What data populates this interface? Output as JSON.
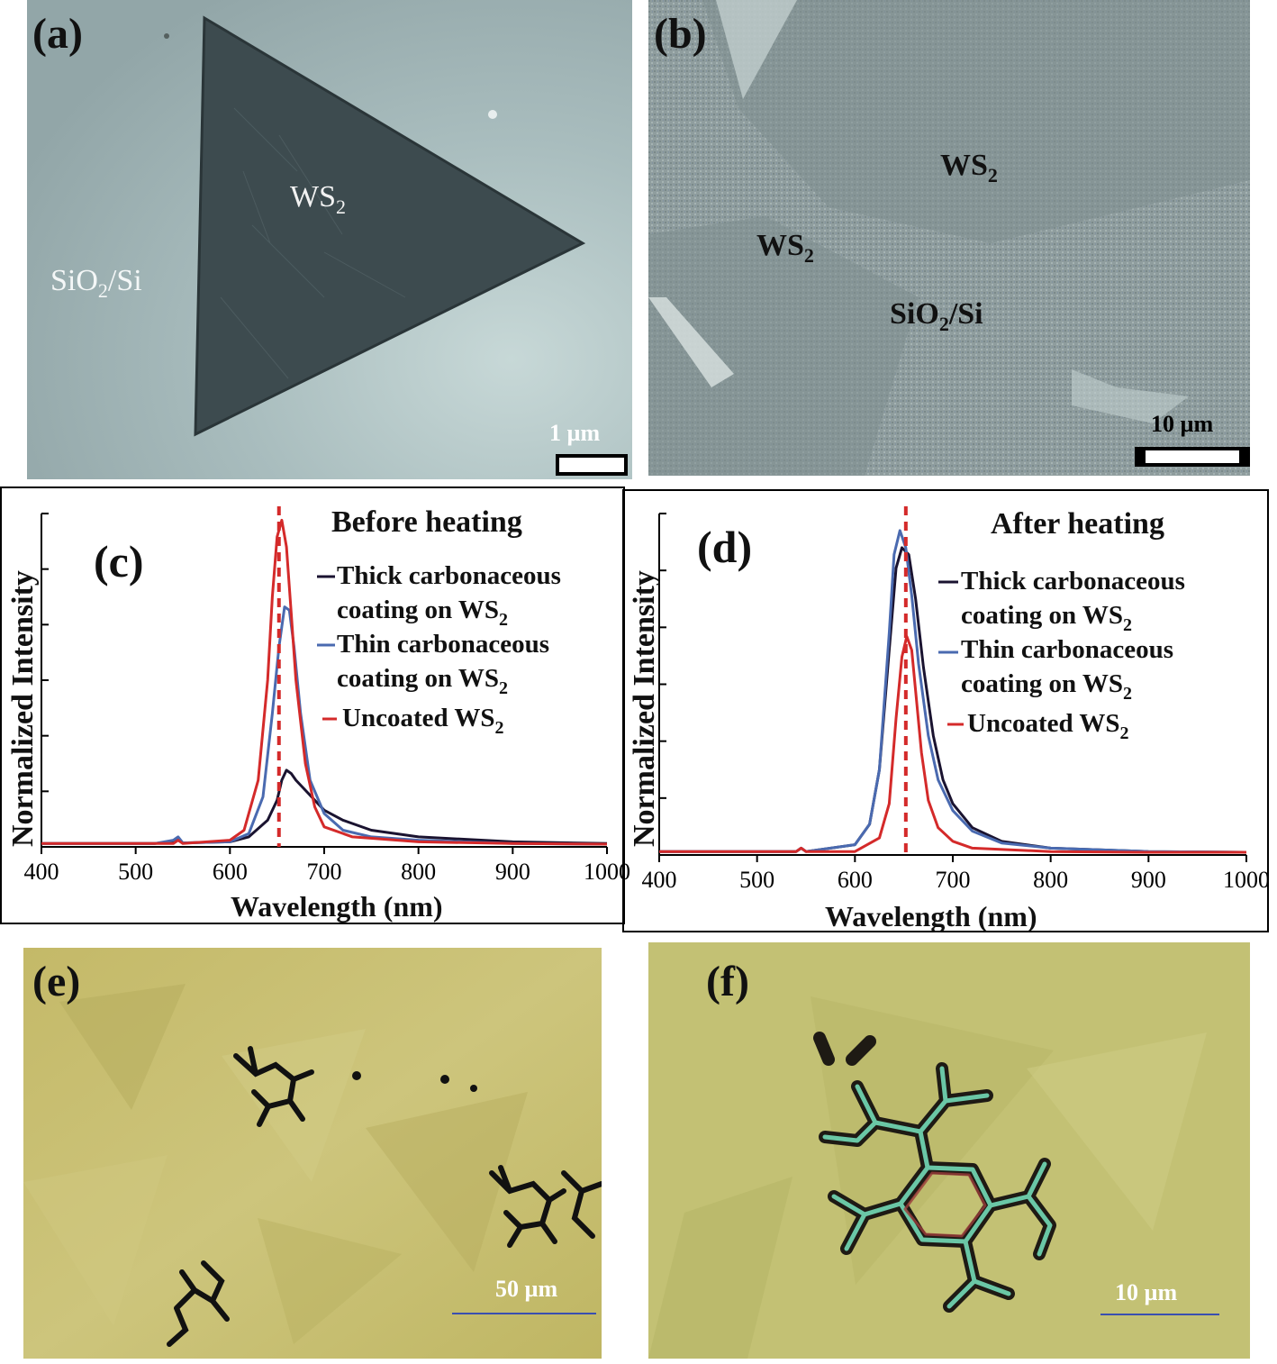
{
  "figure": {
    "panels": {
      "a": {
        "label": "(a)",
        "labels": {
          "ws2": "WS",
          "ws2_sub": "2",
          "substrate_pre": "SiO",
          "substrate_sub": "2",
          "substrate_post": "/Si"
        },
        "scale_bar": "1 µm",
        "colors": {
          "bg": "#a3b8b9",
          "flake": "#3b4a4d"
        }
      },
      "b": {
        "label": "(b)",
        "labels": {
          "ws2_a": "WS",
          "ws2_b": "WS",
          "ws2_sub": "2",
          "substrate_pre": "SiO",
          "substrate_sub": "2",
          "substrate_post": "/Si"
        },
        "scale_bar": "10 µm",
        "colors": {
          "bg": "#8e9c9d"
        }
      },
      "e": {
        "label": "(e)",
        "scale_bar": "50 µm",
        "colors": {
          "bg": "#c6bd6f",
          "flake": "#b4ac5e"
        }
      },
      "f": {
        "label": "(f)",
        "scale_bar": "10 µm",
        "colors": {
          "bg": "#c3c173"
        }
      }
    }
  },
  "chart_data": [
    {
      "type": "line",
      "panel_label": "(c)",
      "title": "Before heating",
      "xlabel": "Wavelength (nm)",
      "ylabel": "Normalized Intensity",
      "xlim": [
        400,
        1000
      ],
      "ylim": [
        0,
        1
      ],
      "xticks": [
        "400",
        "500",
        "600",
        "700",
        "800",
        "900",
        "1000"
      ],
      "grid": false,
      "legend": [
        {
          "line1": "Thick carbonaceous",
          "line2": "coating on WS",
          "sub": "2",
          "color": "#1a1330"
        },
        {
          "line1": "Thin carbonaceous",
          "line2": "coating on WS",
          "sub": "2",
          "color": "#4a6ab0"
        },
        {
          "line1": "Uncoated WS",
          "line2": "",
          "sub": "2",
          "color": "#d42a2a"
        }
      ],
      "reference_line_x": 652,
      "reference_line_color": "#d42a2a",
      "series": [
        {
          "name": "Thick carbonaceous coating on WS2",
          "color": "#1a1330",
          "x": [
            400,
            520,
            540,
            545,
            550,
            600,
            620,
            640,
            650,
            655,
            660,
            665,
            670,
            680,
            690,
            700,
            720,
            750,
            800,
            900,
            1000
          ],
          "y": [
            0.01,
            0.01,
            0.015,
            0.02,
            0.012,
            0.015,
            0.03,
            0.08,
            0.14,
            0.2,
            0.23,
            0.22,
            0.2,
            0.17,
            0.14,
            0.11,
            0.08,
            0.05,
            0.03,
            0.015,
            0.01
          ]
        },
        {
          "name": "Thin carbonaceous coating on WS2",
          "color": "#4a6ab0",
          "x": [
            400,
            520,
            540,
            545,
            550,
            600,
            620,
            635,
            645,
            652,
            658,
            663,
            668,
            675,
            685,
            700,
            720,
            750,
            800,
            900,
            1000
          ],
          "y": [
            0.01,
            0.01,
            0.02,
            0.03,
            0.012,
            0.015,
            0.04,
            0.15,
            0.4,
            0.6,
            0.72,
            0.71,
            0.6,
            0.4,
            0.2,
            0.1,
            0.05,
            0.03,
            0.02,
            0.01,
            0.008
          ]
        },
        {
          "name": "Uncoated WS2",
          "color": "#d42a2a",
          "x": [
            400,
            540,
            545,
            550,
            600,
            615,
            630,
            640,
            645,
            650,
            655,
            660,
            665,
            670,
            680,
            690,
            700,
            730,
            800,
            900,
            1000
          ],
          "y": [
            0.01,
            0.01,
            0.02,
            0.01,
            0.02,
            0.05,
            0.2,
            0.5,
            0.75,
            0.93,
            0.98,
            0.9,
            0.7,
            0.5,
            0.25,
            0.12,
            0.06,
            0.03,
            0.015,
            0.01,
            0.008
          ]
        }
      ]
    },
    {
      "type": "line",
      "panel_label": "(d)",
      "title": "After heating",
      "xlabel": "Wavelength (nm)",
      "ylabel": "Normalized Intensity",
      "xlim": [
        400,
        1000
      ],
      "ylim": [
        0,
        1
      ],
      "xticks": [
        "400",
        "500",
        "600",
        "700",
        "800",
        "900",
        "1000"
      ],
      "grid": false,
      "legend": [
        {
          "line1": "Thick carbonaceous",
          "line2": "coating on WS",
          "sub": "2",
          "color": "#1a1330"
        },
        {
          "line1": "Thin carbonaceous",
          "line2": "coating on WS",
          "sub": "2",
          "color": "#4a6ab0"
        },
        {
          "line1": "Uncoated WS",
          "line2": "",
          "sub": "2",
          "color": "#d42a2a"
        }
      ],
      "reference_line_x": 652,
      "reference_line_color": "#d42a2a",
      "series": [
        {
          "name": "Thick carbonaceous coating on WS2",
          "color": "#1a1330",
          "x": [
            400,
            540,
            545,
            550,
            600,
            615,
            625,
            635,
            642,
            648,
            655,
            662,
            670,
            680,
            690,
            700,
            720,
            750,
            800,
            900,
            1000
          ],
          "y": [
            0.01,
            0.01,
            0.02,
            0.01,
            0.03,
            0.09,
            0.25,
            0.6,
            0.84,
            0.9,
            0.88,
            0.75,
            0.55,
            0.35,
            0.22,
            0.15,
            0.08,
            0.04,
            0.02,
            0.01,
            0.008
          ]
        },
        {
          "name": "Thin carbonaceous coating on WS2",
          "color": "#4a6ab0",
          "x": [
            400,
            540,
            545,
            550,
            600,
            615,
            625,
            635,
            640,
            646,
            652,
            658,
            665,
            675,
            685,
            700,
            720,
            750,
            800,
            900,
            1000
          ],
          "y": [
            0.01,
            0.01,
            0.02,
            0.01,
            0.03,
            0.09,
            0.25,
            0.65,
            0.88,
            0.95,
            0.9,
            0.76,
            0.56,
            0.35,
            0.22,
            0.13,
            0.07,
            0.035,
            0.02,
            0.01,
            0.008
          ]
        },
        {
          "name": "Uncoated WS2",
          "color": "#d42a2a",
          "x": [
            400,
            540,
            545,
            550,
            600,
            625,
            635,
            642,
            648,
            653,
            658,
            663,
            668,
            675,
            685,
            700,
            720,
            800,
            900,
            1000
          ],
          "y": [
            0.01,
            0.01,
            0.02,
            0.01,
            0.01,
            0.05,
            0.15,
            0.4,
            0.58,
            0.64,
            0.6,
            0.45,
            0.3,
            0.16,
            0.08,
            0.04,
            0.02,
            0.01,
            0.008,
            0.008
          ]
        }
      ]
    }
  ]
}
